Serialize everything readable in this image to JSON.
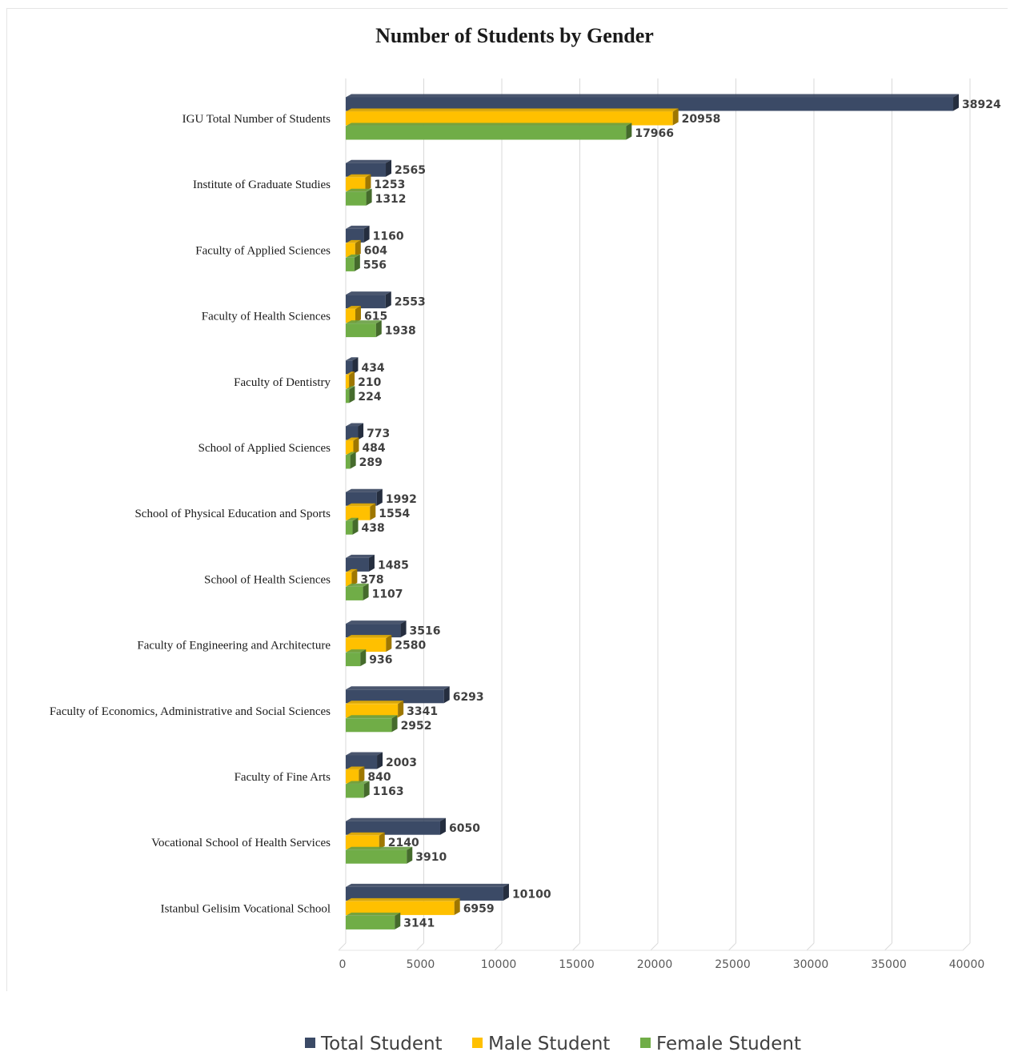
{
  "chart_data": {
    "type": "bar",
    "orientation": "horizontal",
    "title": "Number of Students by Gender",
    "xlabel": "",
    "ylabel": "",
    "xlim": [
      0,
      40000
    ],
    "ticks": [
      0,
      5000,
      10000,
      15000,
      20000,
      25000,
      30000,
      35000,
      40000
    ],
    "grid": true,
    "legend_position": "bottom",
    "categories": [
      "IGU Total Number of Students",
      "Institute of Graduate Studies",
      "Faculty of Applied Sciences",
      "Faculty of Health Sciences",
      "Faculty of Dentistry",
      "School of Applied Sciences",
      "School of Physical Education and Sports",
      "School of Health Sciences",
      "Faculty of Engineering and Architecture",
      "Faculty of Economics, Administrative and Social Sciences",
      "Faculty of Fine Arts",
      "Vocational School of Health Services",
      "Istanbul Gelisim Vocational School"
    ],
    "series": [
      {
        "name": "Total Student",
        "color": "#3b4a66",
        "values": [
          38924,
          2565,
          1160,
          2553,
          434,
          773,
          1992,
          1485,
          3516,
          6293,
          2003,
          6050,
          10100
        ]
      },
      {
        "name": "Male Student",
        "color": "#ffc000",
        "values": [
          20958,
          1253,
          604,
          615,
          210,
          484,
          1554,
          378,
          2580,
          3341,
          840,
          2140,
          6959
        ]
      },
      {
        "name": "Female Student",
        "color": "#70ad47",
        "values": [
          17966,
          1312,
          556,
          1938,
          224,
          289,
          438,
          1107,
          936,
          2952,
          1163,
          3910,
          3141
        ]
      }
    ]
  }
}
